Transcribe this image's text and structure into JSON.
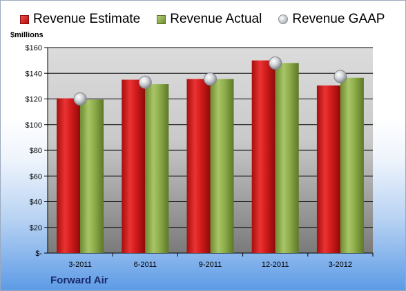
{
  "chart_data": {
    "type": "bar",
    "categories": [
      "3-2011",
      "6-2011",
      "9-2011",
      "12-2011",
      "3-2012"
    ],
    "series": [
      {
        "name": "Revenue Estimate",
        "values": [
          120.5,
          135,
          135.5,
          150,
          130.5
        ],
        "color": "#d42020"
      },
      {
        "name": "Revenue Actual",
        "values": [
          119.5,
          131.5,
          135.5,
          148,
          136.5
        ],
        "color": "#8fb04c"
      },
      {
        "name": "Revenue GAAP",
        "values": [
          120,
          133,
          135.5,
          148,
          137.5
        ],
        "color": "#c3c7cc"
      }
    ],
    "ylabel": "$millions",
    "ylim": [
      0,
      160
    ],
    "yticks": [
      0,
      20,
      40,
      60,
      80,
      100,
      120,
      140,
      160
    ],
    "ytick_labels": [
      "$-",
      "$20",
      "$40",
      "$60",
      "$80",
      "$100",
      "$120",
      "$140",
      "$160"
    ],
    "grid": true,
    "legend": "top"
  },
  "company": "Forward Air"
}
